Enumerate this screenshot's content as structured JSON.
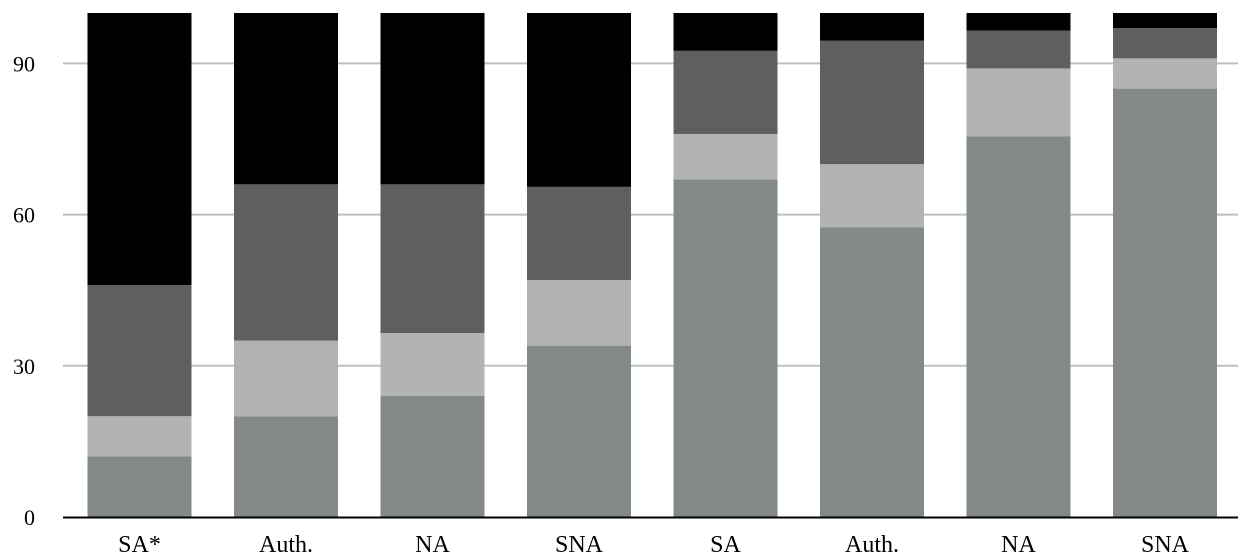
{
  "chart_data": {
    "type": "bar",
    "stacked": true,
    "categories": [
      "SA*",
      "Auth.",
      "NA",
      "SNA",
      "SA",
      "Auth.",
      "NA",
      "SNA"
    ],
    "series": [
      {
        "color": "#828987",
        "values": [
          12,
          20,
          24,
          34,
          67,
          57.5,
          75.5,
          85
        ]
      },
      {
        "color": "#b3b3b3",
        "values": [
          8,
          15,
          12.5,
          13,
          9,
          12.5,
          13.5,
          6
        ]
      },
      {
        "color": "#5d605e",
        "values": [
          26,
          31,
          29.5,
          18.5,
          16.5,
          24.5,
          7.5,
          6
        ]
      },
      {
        "color": "#000000",
        "values": [
          54,
          34,
          34,
          34.5,
          7.5,
          5.5,
          3.5,
          3
        ]
      }
    ],
    "yticks": [
      0,
      30,
      60,
      90
    ],
    "ylim": [
      0,
      100
    ],
    "grid": true,
    "legend": "none"
  }
}
